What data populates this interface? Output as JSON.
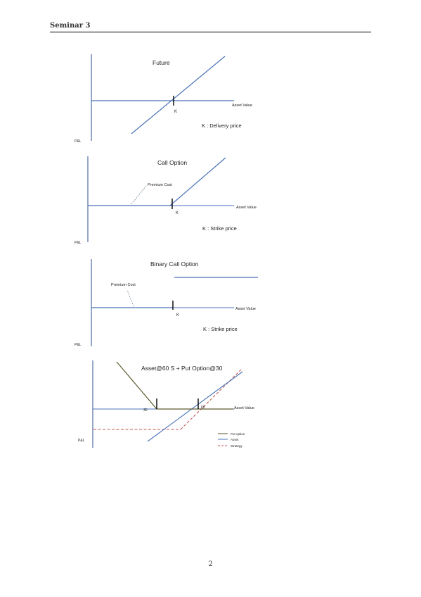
{
  "header": {
    "title": "Seminar 3"
  },
  "page": {
    "number": "2"
  },
  "figures": [
    {
      "title": "Future",
      "axis_label": "Asset Value",
      "strike_label": "K",
      "note": "K : Delivery price",
      "y_label": "P&L"
    },
    {
      "title": "Call Option",
      "premium_label": "Premium Cost",
      "axis_label": "Asset Value",
      "strike_label": "K",
      "note": "K : Strike price",
      "y_label": "P&L"
    },
    {
      "title": "Binary Call Option",
      "premium_label": "Premium Cost",
      "axis_label": "Asset Value",
      "strike_label": "K",
      "note": "K : Strike price",
      "y_label": "P&L"
    },
    {
      "title": "Asset@60 S + Put Option@30",
      "axis_label": "Asset Value",
      "label_30": "30",
      "label_60": "60",
      "y_label": "P&L",
      "legend": [
        "Put option",
        "Asset",
        "Strategy"
      ]
    }
  ],
  "colors": {
    "line": "#4a72b8",
    "put": "#5c5a2e",
    "strategy": "#c0504d",
    "axis": "#2f4f8f"
  }
}
